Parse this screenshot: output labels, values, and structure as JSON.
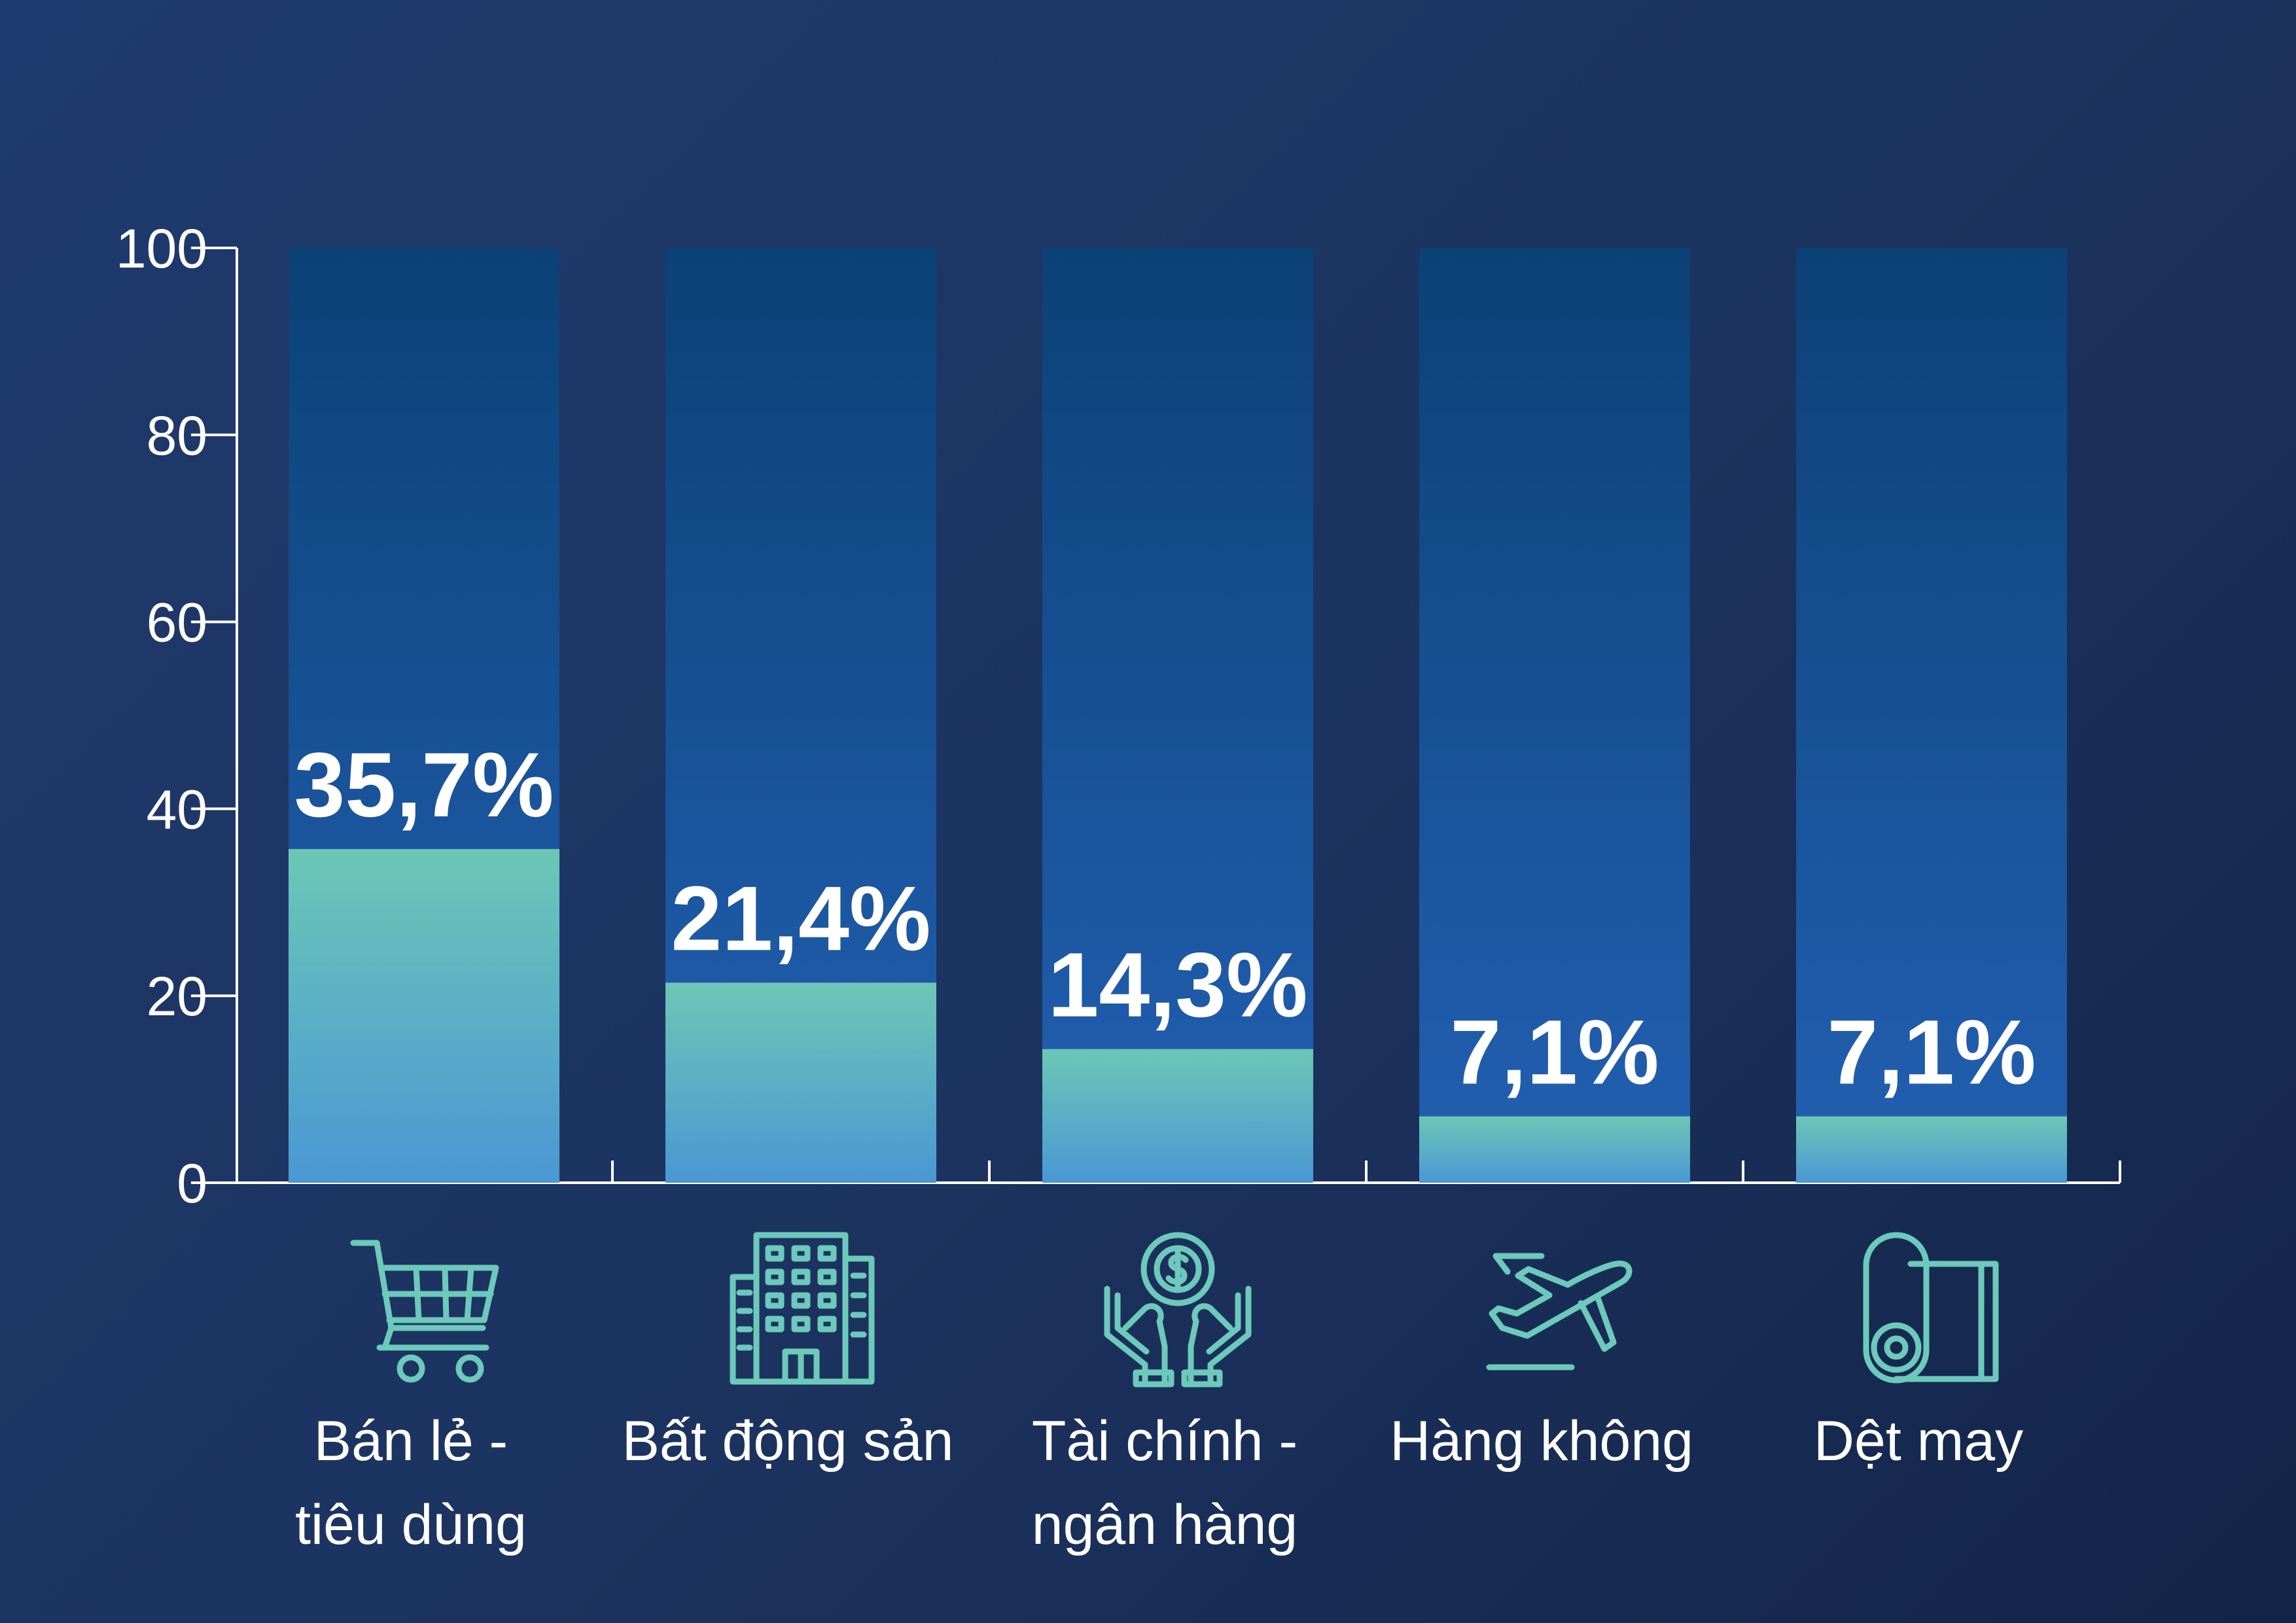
{
  "chart_data": {
    "type": "bar",
    "categories": [
      [
        "Bán lẻ -",
        "tiêu dùng"
      ],
      [
        "Bất động sản"
      ],
      [
        "Tài chính -",
        "ngân hàng"
      ],
      [
        "Hàng không"
      ],
      [
        "Dệt may"
      ]
    ],
    "values": [
      35.7,
      21.4,
      14.3,
      7.1,
      7.1
    ],
    "value_labels": [
      "35,7%",
      "21,4%",
      "14,3%",
      "7,1%",
      "7,1%"
    ],
    "icons": [
      "shopping-cart-icon",
      "building-icon",
      "hands-dollar-icon",
      "airplane-icon",
      "fabric-roll-icon"
    ],
    "ylim": [
      0,
      100
    ],
    "yticks": [
      "0",
      "20",
      "40",
      "60",
      "80",
      "100"
    ],
    "grid": false,
    "colors": {
      "track_top": "#0c4176",
      "track_bottom": "#2360b3",
      "fill_top": "#6cc7b6",
      "fill_bottom": "#4a97d4",
      "axis": "#ffffff",
      "icon_top": "#6cc9bb",
      "icon_bottom": "#4f9ad6"
    }
  }
}
